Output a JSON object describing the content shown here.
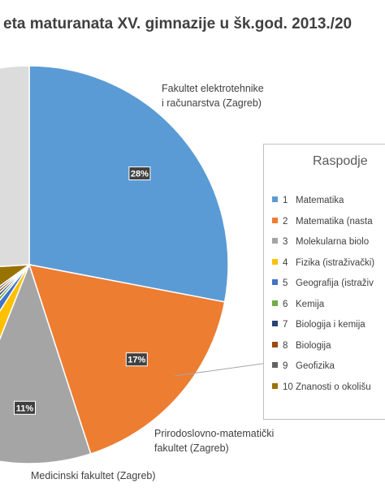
{
  "chart_data": {
    "type": "pie",
    "title": "eta maturanata XV. gimnazije u šk.god. 2013./20",
    "slices": [
      {
        "label": "Fakultet elektrotehnike i računarstva (Zagreb)",
        "value": 28,
        "color": "#5B9BD5",
        "data_label": "28%"
      },
      {
        "label": "Prirodoslovno-matematički fakultet (Zagreb)",
        "value": 17,
        "color": "#ED7D31",
        "data_label": "17%"
      },
      {
        "label": "Medicinski fakultet (Zagreb)",
        "value": 11,
        "color": "#A5A5A5",
        "data_label": "11%"
      },
      {
        "label": "",
        "value": 3,
        "color": "#FFC000",
        "data_label": ""
      },
      {
        "label": "",
        "value": 2,
        "color": "#4472C4",
        "data_label": ""
      },
      {
        "label": "",
        "value": 1,
        "color": "#70AD47",
        "data_label": ""
      },
      {
        "label": "",
        "value": 1,
        "color": "#264478",
        "data_label": ""
      },
      {
        "label": "",
        "value": 1,
        "color": "#9E480E",
        "data_label": ""
      },
      {
        "label": "",
        "value": 1,
        "color": "#636363",
        "data_label": ""
      },
      {
        "label": "",
        "value": 9,
        "color": "#997300",
        "data_label": ""
      },
      {
        "label": "",
        "value": 26,
        "color": "#DCDCDC",
        "data_label": ""
      }
    ],
    "callouts": {
      "fer_line1": "Fakultet elektrotehnike",
      "fer_line2": "i računarstva (Zagreb)",
      "pmf_line1": "Prirodoslovno-matematički",
      "pmf_line2": "fakultet (Zagreb)",
      "med": "Medicinski fakultet (Zagreb)"
    },
    "legend": {
      "title": "Raspodje",
      "position": "right",
      "items": [
        {
          "num": "1",
          "label": "Matematika",
          "color": "#5B9BD5"
        },
        {
          "num": "2",
          "label": "Matematika (nasta",
          "color": "#ED7D31"
        },
        {
          "num": "3",
          "label": "Molekularna biolo",
          "color": "#A5A5A5"
        },
        {
          "num": "4",
          "label": "Fizika (istraživački)",
          "color": "#FFC000"
        },
        {
          "num": "5",
          "label": "Geografija (istraživ",
          "color": "#4472C4"
        },
        {
          "num": "6",
          "label": "Kemija",
          "color": "#70AD47"
        },
        {
          "num": "7",
          "label": "Biologija i kemija",
          "color": "#264478"
        },
        {
          "num": "8",
          "label": "Biologija",
          "color": "#9E480E"
        },
        {
          "num": "9",
          "label": "Geofizika",
          "color": "#636363"
        },
        {
          "num": "10",
          "label": "Znanosti o okolišu",
          "color": "#997300"
        }
      ]
    }
  }
}
